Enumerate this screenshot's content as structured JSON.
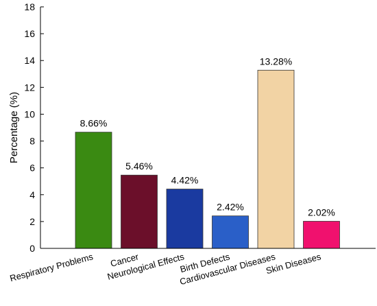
{
  "chart_data": {
    "type": "bar",
    "ylabel": "Percentage (%)",
    "ylim": [
      0,
      18
    ],
    "yticks": [
      0,
      2,
      4,
      6,
      8,
      10,
      12,
      14,
      16,
      18
    ],
    "grid": false,
    "categories": [
      "Respiratory Problems",
      "Cancer",
      "Neurological Effects",
      "Birth Defects",
      "Cardiovascular Diseases",
      "Skin Diseases"
    ],
    "values": [
      8.66,
      5.46,
      4.42,
      2.42,
      13.28,
      2.02
    ],
    "value_labels": [
      "8.66%",
      "5.46%",
      "4.42%",
      "2.42%",
      "13.28%",
      "2.02%"
    ],
    "colors": [
      "#3a8a12",
      "#6b0f2a",
      "#1a3aa0",
      "#2a5fc8",
      "#f2d3a4",
      "#f0116e"
    ]
  }
}
